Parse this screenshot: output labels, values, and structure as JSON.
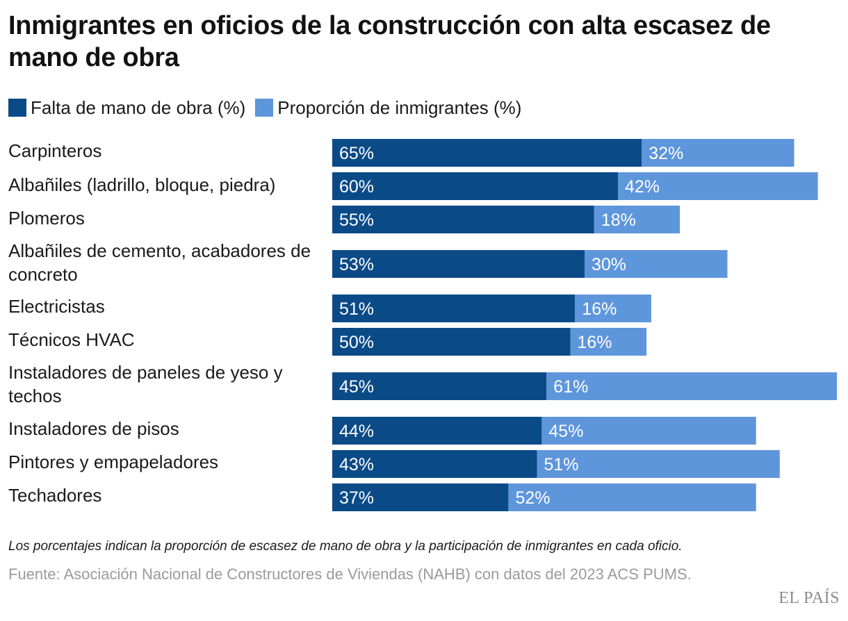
{
  "title": "Inmigrantes en oficios de la construcción con alta escasez de mano de obra",
  "colors": {
    "shortage": "#0a4a87",
    "immigrants": "#5e96dc",
    "bar_text": "#ffffff"
  },
  "legend": [
    {
      "label": "Falta de mano de obra (%)",
      "color": "#0a4a87"
    },
    {
      "label": "Proporción de inmigrantes (%)",
      "color": "#5e96dc"
    }
  ],
  "chart_data": {
    "type": "bar",
    "orientation": "horizontal",
    "stacked": true,
    "unit": "%",
    "categories": [
      "Carpinteros",
      "Albañiles (ladrillo, bloque, piedra)",
      "Plomeros",
      "Albañiles de cemento, acabadores de concreto",
      "Electricistas",
      "Técnicos HVAC",
      "Instaladores de paneles de yeso y techos",
      "Instaladores de pisos",
      "Pintores y empapeladores",
      "Techadores"
    ],
    "series": [
      {
        "name": "Falta de mano de obra (%)",
        "values": [
          65,
          60,
          55,
          53,
          51,
          50,
          45,
          44,
          43,
          37
        ]
      },
      {
        "name": "Proporción de inmigrantes (%)",
        "values": [
          32,
          42,
          18,
          30,
          16,
          16,
          61,
          45,
          51,
          52
        ]
      }
    ],
    "grid": false,
    "legend_position": "top-left"
  },
  "footer": {
    "note": "Los porcentajes indican la proporción de escasez de mano de obra y la participación de inmigrantes en cada oficio.",
    "source": "Fuente: Asociación Nacional de Constructores de Viviendas (NAHB) con datos del 2023 ACS PUMS.",
    "brand": "EL PAÍS"
  }
}
